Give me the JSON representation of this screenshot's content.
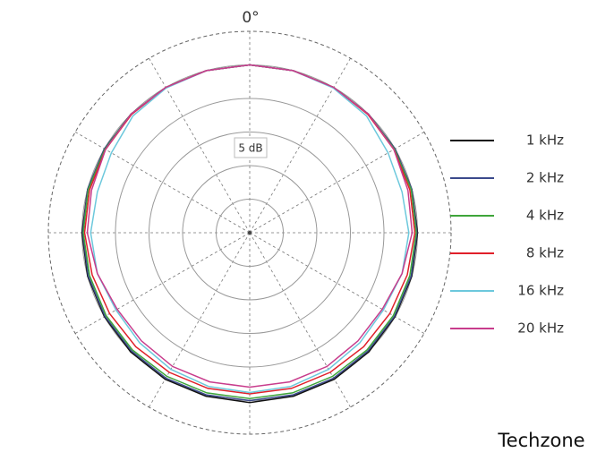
{
  "chart_data": {
    "type": "polar",
    "angle_label": "0°",
    "annotation": "5 dB",
    "watermark": "Techzone",
    "theta": [
      0,
      15,
      30,
      45,
      60,
      75,
      90,
      105,
      120,
      135,
      150,
      165,
      180,
      195,
      210,
      225,
      240,
      255,
      270,
      285,
      300,
      315,
      330,
      345
    ],
    "rlim": [
      -25,
      5
    ],
    "rticks": [
      -20,
      -15,
      -10,
      -5,
      0,
      5
    ],
    "thetaticks": [
      0,
      30,
      60,
      90,
      120,
      150,
      180,
      210,
      240,
      270,
      300,
      330
    ],
    "series": [
      {
        "name": "1 kHz",
        "color": "#111111",
        "values": [
          0,
          0,
          0,
          0,
          0,
          0,
          0,
          0,
          0,
          0.1,
          0.2,
          0.2,
          0.3,
          0.2,
          0.2,
          0.1,
          0,
          0,
          0,
          0,
          0,
          0,
          0,
          0
        ]
      },
      {
        "name": "2 kHz",
        "color": "#3b4a8c",
        "values": [
          0,
          0,
          0,
          0,
          0,
          0,
          -0.1,
          -0.1,
          -0.1,
          -0.1,
          0,
          0,
          0,
          0,
          0,
          -0.1,
          -0.1,
          -0.1,
          -0.1,
          0,
          0,
          0,
          0,
          0
        ]
      },
      {
        "name": "4 kHz",
        "color": "#3fa53a",
        "values": [
          0,
          0,
          0,
          0,
          -0.1,
          -0.1,
          -0.2,
          -0.3,
          -0.3,
          -0.3,
          -0.3,
          -0.3,
          -0.3,
          -0.3,
          -0.3,
          -0.3,
          -0.3,
          -0.3,
          -0.2,
          -0.1,
          -0.1,
          0,
          0,
          0
        ]
      },
      {
        "name": "8 kHz",
        "color": "#e0202a",
        "values": [
          0,
          0,
          0,
          -0.1,
          -0.2,
          -0.3,
          -0.4,
          -0.7,
          -0.9,
          -1,
          -1,
          -1,
          -1,
          -1,
          -1,
          -1,
          -0.9,
          -0.7,
          -0.4,
          -0.3,
          -0.2,
          -0.1,
          0,
          0
        ]
      },
      {
        "name": "16 kHz",
        "color": "#6cc8dc",
        "values": [
          0,
          0,
          -0.1,
          -0.4,
          -1.2,
          -1.5,
          -1.3,
          -1.5,
          -2,
          -1.8,
          -1.5,
          -1.3,
          -1.2,
          -1.3,
          -1.5,
          -1.8,
          -2,
          -1.5,
          -1.3,
          -1.5,
          -1.2,
          -0.4,
          -0.1,
          0
        ]
      },
      {
        "name": "20 kHz",
        "color": "#c83c8c",
        "values": [
          0,
          0,
          0,
          0,
          -0.2,
          -0.6,
          -0.8,
          -1.5,
          -2.2,
          -2.2,
          -2,
          -2,
          -2,
          -2,
          -2,
          -2.2,
          -2.2,
          -1.5,
          -0.8,
          -0.6,
          -0.2,
          0,
          0,
          0
        ]
      }
    ]
  }
}
